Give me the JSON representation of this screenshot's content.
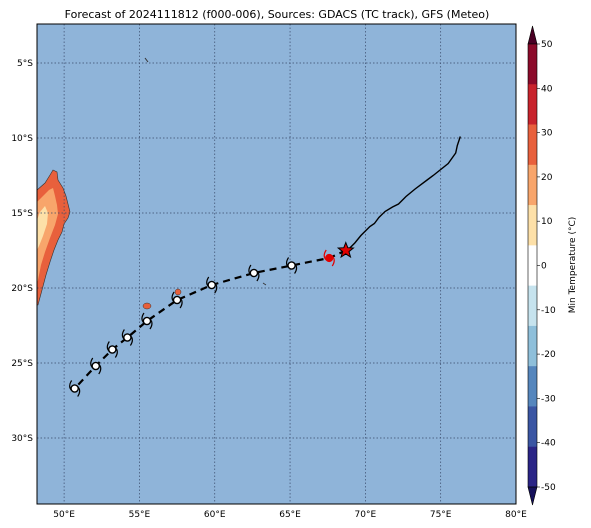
{
  "title": "Forecast of 2024111812 (f000-006), Sources: GDACS (TC track), GFS (Meteo)",
  "colorbar": {
    "label": "Min Temperature (°C)",
    "ticks": [
      "50",
      "40",
      "30",
      "20",
      "10",
      "0",
      "-10",
      "-20",
      "-30",
      "-40",
      "-50"
    ],
    "colors": [
      "#4a0024",
      "#8b0a2a",
      "#c8232c",
      "#e8603c",
      "#f8a56b",
      "#fde0a8",
      "#ffffff",
      "#c6e3ee",
      "#8ebfda",
      "#5586bd",
      "#3a55a3",
      "#2a2486",
      "#15105a"
    ]
  },
  "map": {
    "ocean_color": "#8fb4d9",
    "lon_labels": [
      "50°E",
      "55°E",
      "60°E",
      "65°E",
      "70°E",
      "75°E",
      "80°E"
    ],
    "lat_labels": [
      "5°S",
      "10°S",
      "15°S",
      "20°S",
      "25°S",
      "30°S"
    ]
  },
  "chart_data": {
    "type": "map",
    "lon_range": [
      48.2,
      80
    ],
    "lat_range": [
      -34.4,
      -2.4
    ],
    "observed_track": [
      [
        76.3,
        -9.9
      ],
      [
        76.1,
        -10.5
      ],
      [
        76.0,
        -11.0
      ],
      [
        75.5,
        -11.7
      ],
      [
        74.5,
        -12.5
      ],
      [
        74.1,
        -12.8
      ],
      [
        73.3,
        -13.4
      ],
      [
        72.7,
        -13.9
      ],
      [
        72.2,
        -14.4
      ],
      [
        71.8,
        -14.6
      ],
      [
        71.3,
        -14.9
      ],
      [
        70.9,
        -15.3
      ],
      [
        70.6,
        -15.7
      ],
      [
        70.3,
        -15.9
      ],
      [
        69.7,
        -16.5
      ],
      [
        69.3,
        -17.0
      ],
      [
        68.8,
        -17.5
      ]
    ],
    "current_position": [
      68.7,
      -17.5
    ],
    "forecast_track": [
      [
        68.7,
        -17.5
      ],
      [
        67.6,
        -18.0
      ],
      [
        65.1,
        -18.5
      ],
      [
        62.6,
        -19.0
      ],
      [
        59.8,
        -19.8
      ],
      [
        57.5,
        -20.8
      ],
      [
        55.5,
        -22.2
      ],
      [
        54.2,
        -23.3
      ],
      [
        53.2,
        -24.1
      ],
      [
        52.1,
        -25.2
      ],
      [
        50.7,
        -26.7
      ]
    ],
    "forecast_points": [
      [
        65.1,
        -18.5
      ],
      [
        62.6,
        -19.0
      ],
      [
        59.8,
        -19.8
      ],
      [
        57.5,
        -20.8
      ],
      [
        55.5,
        -22.2
      ],
      [
        54.2,
        -23.3
      ],
      [
        53.2,
        -24.1
      ],
      [
        52.1,
        -25.2
      ],
      [
        50.7,
        -26.7
      ]
    ],
    "red_point": [
      67.6,
      -18.0
    ]
  }
}
